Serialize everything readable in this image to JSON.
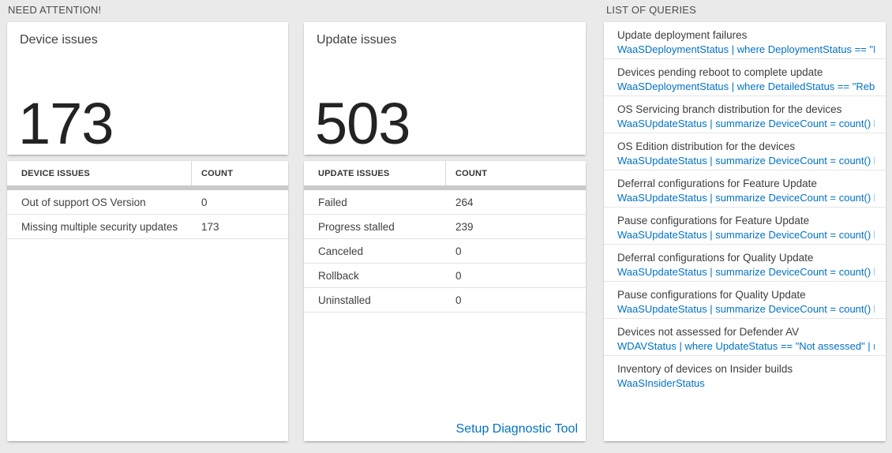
{
  "headers": {
    "need_attention": "NEED ATTENTION!",
    "list_of_queries": "LIST OF QUERIES"
  },
  "device_card": {
    "title": "Device issues",
    "count": "173",
    "table": {
      "issue_col": "DEVICE ISSUES",
      "count_col": "COUNT",
      "rows": [
        {
          "label": "Out of support OS Version",
          "count": "0"
        },
        {
          "label": "Missing multiple security updates",
          "count": "173"
        }
      ]
    }
  },
  "update_card": {
    "title": "Update issues",
    "count": "503",
    "table": {
      "issue_col": "UPDATE ISSUES",
      "count_col": "COUNT",
      "rows": [
        {
          "label": "Failed",
          "count": "264"
        },
        {
          "label": "Progress stalled",
          "count": "239"
        },
        {
          "label": "Canceled",
          "count": "0"
        },
        {
          "label": "Rollback",
          "count": "0"
        },
        {
          "label": "Uninstalled",
          "count": "0"
        }
      ]
    },
    "diagnostic_link": "Setup Diagnostic Tool"
  },
  "queries": [
    {
      "title": "Update deployment failures",
      "query": "WaaSDeploymentStatus | where DeploymentStatus == \"Failed\" |..."
    },
    {
      "title": "Devices pending reboot to complete update",
      "query": "WaaSDeploymentStatus | where DetailedStatus == \"Reboot pend..."
    },
    {
      "title": "OS Servicing branch distribution for the devices",
      "query": "WaaSUpdateStatus | summarize DeviceCount = count() by OSSer..."
    },
    {
      "title": "OS Edition distribution for the devices",
      "query": "WaaSUpdateStatus | summarize DeviceCount = count() by OSEdit..."
    },
    {
      "title": "Deferral configurations for Feature Update",
      "query": "WaaSUpdateStatus | summarize DeviceCount = count() by Featur..."
    },
    {
      "title": "Pause configurations for Feature Update",
      "query": "WaaSUpdateStatus | summarize DeviceCount = count() by Featur..."
    },
    {
      "title": "Deferral configurations for Quality Update",
      "query": "WaaSUpdateStatus | summarize DeviceCount = count() by Qualit..."
    },
    {
      "title": "Pause configurations for Quality Update",
      "query": "WaaSUpdateStatus | summarize DeviceCount = count() by Qualit..."
    },
    {
      "title": "Devices not assessed for Defender AV",
      "query": "WDAVStatus | where UpdateStatus == \"Not assessed\" | render ta..."
    },
    {
      "title": "Inventory of devices on Insider builds",
      "query": "WaaSInsiderStatus"
    }
  ],
  "colors": {
    "background": "#eaeaea",
    "card_background": "#ffffff",
    "link_blue": "#0072c6",
    "number_text": "#232323",
    "header_bar_gray": "#c7c9ca"
  }
}
